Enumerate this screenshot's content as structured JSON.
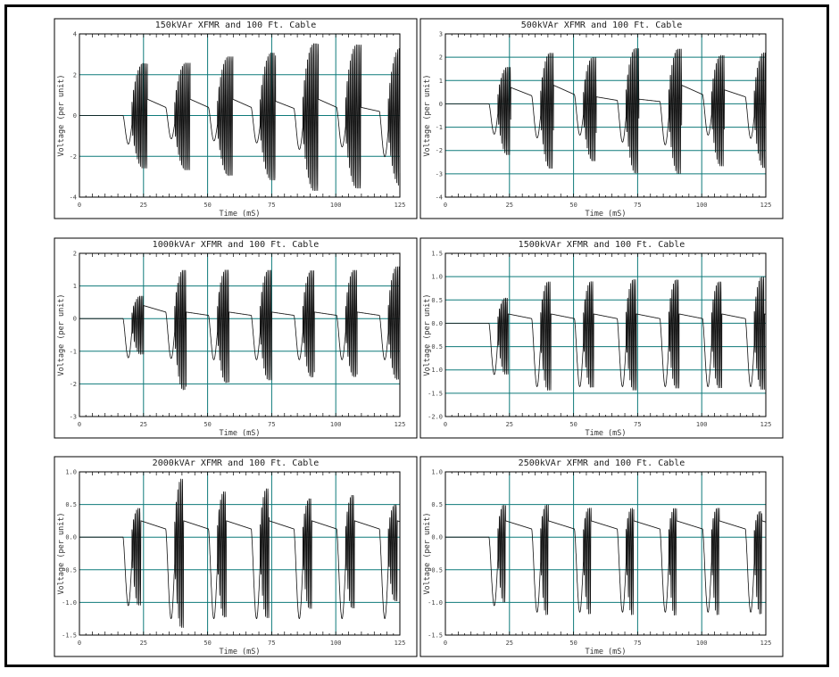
{
  "chart_data": [
    {
      "type": "line",
      "title": "150kVAr XFMR and 100 Ft. Cable",
      "xlabel": "Time (mS)",
      "ylabel": "Voltage (per unit)",
      "xlim": [
        0,
        125
      ],
      "ylim": [
        -4,
        4
      ],
      "xticks": [
        0,
        25,
        50,
        75,
        100,
        125
      ],
      "xtick_labels": [
        "0",
        "25",
        "50",
        "75",
        "100",
        "125"
      ],
      "yticks": [
        -4,
        -2,
        0,
        2,
        4
      ],
      "ytick_labels": [
        "-4",
        "-2",
        "0",
        "2",
        "4"
      ],
      "grid": true,
      "burst_width_ms": 6,
      "bursts": [
        {
          "dip": -1.4,
          "max": 2.6,
          "min": -2.6,
          "after": 0.8
        },
        {
          "dip": -1.3,
          "max": 2.6,
          "min": -2.7,
          "after": 0.8
        },
        {
          "dip": -1.4,
          "max": 2.9,
          "min": -3.0,
          "after": 0.8
        },
        {
          "dip": -1.5,
          "max": 3.1,
          "min": -3.2,
          "after": 0.7
        },
        {
          "dip": -1.8,
          "max": 3.6,
          "min": -3.7,
          "after": 0.8
        },
        {
          "dip": -1.7,
          "max": 3.5,
          "min": -3.6,
          "after": 0.4
        },
        {
          "dip": -2.1,
          "max": 3.3,
          "min": -3.5,
          "after": 0.4
        }
      ]
    },
    {
      "type": "line",
      "title": "500kVAr XFMR and 100 Ft. Cable",
      "xlabel": "Time (mS)",
      "ylabel": "Voltage (per unit)",
      "xlim": [
        0,
        125
      ],
      "ylim": [
        -4,
        3
      ],
      "xticks": [
        0,
        25,
        50,
        75,
        100,
        125
      ],
      "xtick_labels": [
        "0",
        "25",
        "50",
        "75",
        "100",
        "125"
      ],
      "yticks": [
        -4,
        -3,
        -2,
        -1,
        0,
        1,
        2,
        3
      ],
      "ytick_labels": [
        "-4",
        "-3",
        "-2",
        "-1",
        "0",
        "1",
        "2",
        "3"
      ],
      "grid": true,
      "burst_width_ms": 5,
      "bursts": [
        {
          "dip": -1.3,
          "max": 1.6,
          "min": -2.2,
          "after": 0.7
        },
        {
          "dip": -1.6,
          "max": 2.2,
          "min": -2.8,
          "after": 0.8
        },
        {
          "dip": -1.5,
          "max": 2.0,
          "min": -2.5,
          "after": 0.3
        },
        {
          "dip": -1.7,
          "max": 2.4,
          "min": -3.0,
          "after": 0.2
        },
        {
          "dip": -1.8,
          "max": 2.4,
          "min": -3.0,
          "after": 0.8
        },
        {
          "dip": -1.5,
          "max": 2.1,
          "min": -2.7,
          "after": 0.6
        },
        {
          "dip": -1.6,
          "max": 2.2,
          "min": -2.8,
          "after": 0.6
        }
      ]
    },
    {
      "type": "line",
      "title": "1000kVAr XFMR and 100 Ft. Cable",
      "xlabel": "Time (mS)",
      "ylabel": "Voltage (per unit)",
      "xlim": [
        0,
        125
      ],
      "ylim": [
        -3,
        2
      ],
      "xticks": [
        0,
        25,
        50,
        75,
        100,
        125
      ],
      "xtick_labels": [
        "0",
        "25",
        "50",
        "75",
        "100",
        "125"
      ],
      "yticks": [
        -3,
        -2,
        -1,
        0,
        1,
        2
      ],
      "ytick_labels": [
        "-3",
        "-2",
        "-1",
        "0",
        "1",
        "2"
      ],
      "grid": true,
      "burst_width_ms": 4.5,
      "bursts": [
        {
          "dip": -1.2,
          "max": 0.7,
          "min": -1.1,
          "after": 0.4
        },
        {
          "dip": -1.3,
          "max": 1.5,
          "min": -2.2,
          "after": 0.2
        },
        {
          "dip": -1.3,
          "max": 1.5,
          "min": -2.0,
          "after": 0.2
        },
        {
          "dip": -1.3,
          "max": 1.5,
          "min": -1.9,
          "after": 0.2
        },
        {
          "dip": -1.3,
          "max": 1.5,
          "min": -1.8,
          "after": 0.2
        },
        {
          "dip": -1.3,
          "max": 1.5,
          "min": -1.8,
          "after": 0.2
        },
        {
          "dip": -1.3,
          "max": 1.6,
          "min": -1.9,
          "after": 0.2
        }
      ]
    },
    {
      "type": "line",
      "title": "1500kVAr XFMR and 100 Ft. Cable",
      "xlabel": "Time (mS)",
      "ylabel": "Voltage (per unit)",
      "xlim": [
        0,
        125
      ],
      "ylim": [
        -2,
        1.5
      ],
      "xticks": [
        0,
        25,
        50,
        75,
        100,
        125
      ],
      "xtick_labels": [
        "0",
        "25",
        "50",
        "75",
        "100",
        "125"
      ],
      "yticks": [
        -2,
        -1.5,
        -1,
        -0.5,
        0,
        0.5,
        1,
        1.5
      ],
      "ytick_labels": [
        "-2.0",
        "-1.5",
        "-1.0",
        "-0.5",
        "0.0",
        "0.5",
        "1.0",
        "1.5"
      ],
      "grid": true,
      "burst_width_ms": 4,
      "bursts": [
        {
          "dip": -1.1,
          "max": 0.55,
          "min": -1.1,
          "after": 0.2
        },
        {
          "dip": -1.4,
          "max": 0.9,
          "min": -1.45,
          "after": 0.2
        },
        {
          "dip": -1.4,
          "max": 0.9,
          "min": -1.4,
          "after": 0.2
        },
        {
          "dip": -1.4,
          "max": 0.95,
          "min": -1.45,
          "after": 0.2
        },
        {
          "dip": -1.4,
          "max": 0.95,
          "min": -1.4,
          "after": 0.2
        },
        {
          "dip": -1.4,
          "max": 0.9,
          "min": -1.4,
          "after": 0.2
        },
        {
          "dip": -1.4,
          "max": 1.0,
          "min": -1.45,
          "after": 0.2
        }
      ]
    },
    {
      "type": "line",
      "title": "2000kVAr XFMR and 100 Ft. Cable",
      "xlabel": "Time (mS)",
      "ylabel": "Voltage (per unit)",
      "xlim": [
        0,
        125
      ],
      "ylim": [
        -1.5,
        1
      ],
      "xticks": [
        0,
        25,
        50,
        75,
        100,
        125
      ],
      "xtick_labels": [
        "0",
        "25",
        "50",
        "75",
        "100",
        "125"
      ],
      "yticks": [
        -1.5,
        -1,
        -0.5,
        0,
        0.5,
        1
      ],
      "ytick_labels": [
        "-1.5",
        "-1.0",
        "-0.5",
        "0.0",
        "0.5",
        "1.0"
      ],
      "grid": true,
      "burst_width_ms": 3.5,
      "bursts": [
        {
          "dip": -1.05,
          "max": 0.45,
          "min": -1.05,
          "after": 0.25
        },
        {
          "dip": -1.3,
          "max": 0.9,
          "min": -1.4,
          "after": 0.25
        },
        {
          "dip": -1.3,
          "max": 0.7,
          "min": -1.25,
          "after": 0.25
        },
        {
          "dip": -1.3,
          "max": 0.75,
          "min": -1.25,
          "after": 0.25
        },
        {
          "dip": -1.3,
          "max": 0.6,
          "min": -1.1,
          "after": 0.25
        },
        {
          "dip": -1.3,
          "max": 0.65,
          "min": -1.1,
          "after": 0.25
        },
        {
          "dip": -1.3,
          "max": 0.5,
          "min": -1.0,
          "after": 0.25
        }
      ]
    },
    {
      "type": "line",
      "title": "2500kVAr XFMR and 100 Ft. Cable",
      "xlabel": "Time (mS)",
      "ylabel": "Voltage (per unit)",
      "xlim": [
        0,
        125
      ],
      "ylim": [
        -1.5,
        1
      ],
      "xticks": [
        0,
        25,
        50,
        75,
        100,
        125
      ],
      "xtick_labels": [
        "0",
        "25",
        "50",
        "75",
        "100",
        "125"
      ],
      "yticks": [
        -1.5,
        -1,
        -0.5,
        0,
        0.5,
        1
      ],
      "ytick_labels": [
        "-1.5",
        "-1.0",
        "-0.5",
        "0.0",
        "0.5",
        "1.0"
      ],
      "grid": true,
      "burst_width_ms": 3,
      "bursts": [
        {
          "dip": -1.05,
          "max": 0.5,
          "min": -1.0,
          "after": 0.25
        },
        {
          "dip": -1.2,
          "max": 0.5,
          "min": -1.2,
          "after": 0.25
        },
        {
          "dip": -1.2,
          "max": 0.45,
          "min": -1.2,
          "after": 0.25
        },
        {
          "dip": -1.2,
          "max": 0.45,
          "min": -1.2,
          "after": 0.25
        },
        {
          "dip": -1.2,
          "max": 0.45,
          "min": -1.2,
          "after": 0.25
        },
        {
          "dip": -1.2,
          "max": 0.45,
          "min": -1.2,
          "after": 0.25
        },
        {
          "dip": -1.2,
          "max": 0.4,
          "min": -1.2,
          "after": 0.25
        }
      ]
    }
  ],
  "colors": {
    "grid": "#0f7a7a",
    "trace": "#111111",
    "frame": "#000000"
  }
}
